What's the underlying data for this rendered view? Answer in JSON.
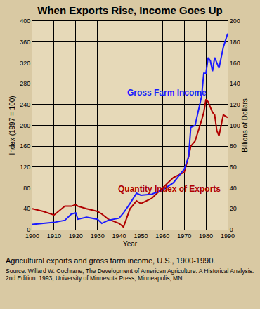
{
  "chart_data": {
    "type": "line",
    "title": "When Exports Rise, Income Goes Up",
    "x_label": "Year",
    "y_label": "Index (1997 = 100)",
    "y2_label": "Billions of Dollars",
    "caption": "Agricultural exports and gross farm income, U.S., 1900-1990.",
    "source": "Source: Willard W. Cochrane, The Development of American Agriculture: A Historical Analysis. 2nd Edition. 1993, University of Minnesota Press, Minneapolis, MN.",
    "x": [
      1900,
      1905,
      1910,
      1915,
      1918,
      1920,
      1921,
      1925,
      1930,
      1932,
      1935,
      1940,
      1942,
      1945,
      1948,
      1950,
      1955,
      1960,
      1965,
      1970,
      1972,
      1973,
      1975,
      1978,
      1979,
      1980,
      1981,
      1982,
      1983,
      1984,
      1985,
      1986,
      1987,
      1988,
      1990
    ],
    "series": [
      {
        "name": "Gross Farm Income",
        "color": "#1a1aff",
        "axis": "y2",
        "values": [
          5,
          6,
          7,
          9,
          15,
          16,
          10,
          12,
          10,
          6,
          9,
          11,
          16,
          25,
          35,
          33,
          34,
          38,
          45,
          58,
          70,
          98,
          100,
          128,
          150,
          150,
          165,
          162,
          152,
          165,
          160,
          155,
          165,
          175,
          188
        ]
      },
      {
        "name": "Quantity Index of Exports",
        "color": "#b00000",
        "values": [
          40,
          35,
          28,
          45,
          45,
          48,
          45,
          40,
          35,
          30,
          20,
          12,
          5,
          40,
          55,
          50,
          60,
          80,
          100,
          110,
          140,
          160,
          170,
          210,
          225,
          250,
          245,
          235,
          225,
          220,
          190,
          180,
          200,
          220,
          215
        ]
      }
    ],
    "xlim": [
      1900,
      1990
    ],
    "xticks": [
      1900,
      1910,
      1920,
      1930,
      1940,
      1950,
      1960,
      1970,
      1980,
      1990
    ],
    "ylim": [
      0,
      400
    ],
    "yticks": [
      0,
      40,
      80,
      120,
      160,
      200,
      240,
      280,
      320,
      360,
      400
    ],
    "y2lim": [
      0,
      200
    ],
    "y2ticks": [
      0,
      20,
      40,
      60,
      80,
      100,
      120,
      140,
      160,
      180,
      200
    ],
    "grid": true
  }
}
